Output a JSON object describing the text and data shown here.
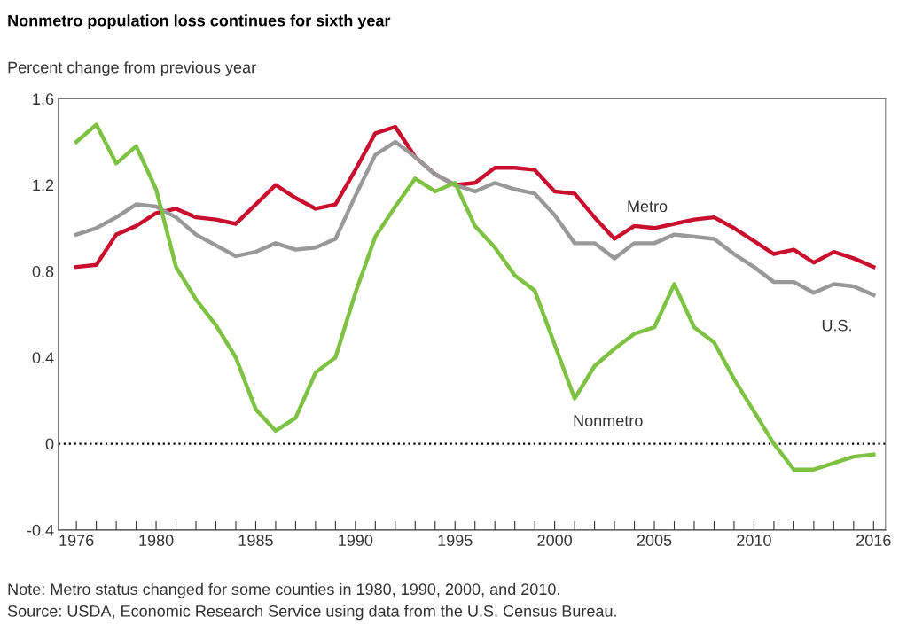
{
  "chart_data": {
    "type": "line",
    "title": "Nonmetro population loss continues for sixth year",
    "ylabel": "Percent change from previous year",
    "x": [
      1976,
      1977,
      1978,
      1979,
      1980,
      1981,
      1982,
      1983,
      1984,
      1985,
      1986,
      1987,
      1988,
      1989,
      1990,
      1991,
      1992,
      1993,
      1994,
      1995,
      1996,
      1997,
      1998,
      1999,
      2000,
      2001,
      2002,
      2003,
      2004,
      2005,
      2006,
      2007,
      2008,
      2009,
      2010,
      2011,
      2012,
      2013,
      2014,
      2015,
      2016
    ],
    "series": [
      {
        "name": "Metro",
        "color": "#c8102e",
        "values": [
          0.82,
          0.83,
          0.97,
          1.01,
          1.07,
          1.09,
          1.05,
          1.04,
          1.02,
          1.11,
          1.2,
          1.14,
          1.09,
          1.11,
          1.27,
          1.44,
          1.47,
          1.33,
          1.25,
          1.2,
          1.21,
          1.28,
          1.28,
          1.27,
          1.17,
          1.16,
          1.05,
          0.95,
          1.01,
          1.0,
          1.02,
          1.04,
          1.05,
          1.0,
          0.94,
          0.88,
          0.9,
          0.84,
          0.89,
          0.86,
          0.82
        ]
      },
      {
        "name": "U.S.",
        "color": "#999999",
        "values": [
          0.97,
          1.0,
          1.05,
          1.11,
          1.1,
          1.05,
          0.97,
          0.92,
          0.87,
          0.89,
          0.93,
          0.9,
          0.91,
          0.95,
          1.15,
          1.34,
          1.4,
          1.33,
          1.25,
          1.2,
          1.17,
          1.21,
          1.18,
          1.16,
          1.06,
          0.93,
          0.93,
          0.86,
          0.93,
          0.93,
          0.97,
          0.96,
          0.95,
          0.88,
          0.82,
          0.75,
          0.75,
          0.7,
          0.74,
          0.73,
          0.69
        ]
      },
      {
        "name": "Nonmetro",
        "color": "#7dc242",
        "values": [
          1.4,
          1.48,
          1.3,
          1.38,
          1.18,
          0.82,
          0.67,
          0.55,
          0.4,
          0.16,
          0.06,
          0.12,
          0.33,
          0.4,
          0.7,
          0.96,
          1.1,
          1.23,
          1.17,
          1.21,
          1.01,
          0.91,
          0.78,
          0.71,
          0.46,
          0.21,
          0.36,
          0.44,
          0.51,
          0.54,
          0.74,
          0.54,
          0.47,
          0.3,
          0.15,
          0.0,
          -0.12,
          -0.12,
          -0.09,
          -0.06,
          -0.05
        ]
      }
    ],
    "xlim": [
      1975.1,
      2016.6
    ],
    "ylim": [
      -0.4,
      1.6
    ],
    "xticks": [
      1976,
      {
        "value": 1977,
        "label": null
      },
      {
        "value": 1978,
        "label": null
      },
      {
        "value": 1979,
        "label": null
      },
      1980,
      {
        "value": 1981,
        "label": null
      },
      {
        "value": 1982,
        "label": null
      },
      {
        "value": 1983,
        "label": null
      },
      {
        "value": 1984,
        "label": null
      },
      1985,
      {
        "value": 1986,
        "label": null
      },
      {
        "value": 1987,
        "label": null
      },
      {
        "value": 1988,
        "label": null
      },
      {
        "value": 1989,
        "label": null
      },
      1990,
      {
        "value": 1991,
        "label": null
      },
      {
        "value": 1992,
        "label": null
      },
      {
        "value": 1993,
        "label": null
      },
      {
        "value": 1994,
        "label": null
      },
      1995,
      {
        "value": 1996,
        "label": null
      },
      {
        "value": 1997,
        "label": null
      },
      {
        "value": 1998,
        "label": null
      },
      {
        "value": 1999,
        "label": null
      },
      2000,
      {
        "value": 2001,
        "label": null
      },
      {
        "value": 2002,
        "label": null
      },
      {
        "value": 2003,
        "label": null
      },
      {
        "value": 2004,
        "label": null
      },
      2005,
      {
        "value": 2006,
        "label": null
      },
      {
        "value": 2007,
        "label": null
      },
      {
        "value": 2008,
        "label": null
      },
      {
        "value": 2009,
        "label": null
      },
      2010,
      {
        "value": 2011,
        "label": null
      },
      {
        "value": 2012,
        "label": null
      },
      {
        "value": 2013,
        "label": null
      },
      {
        "value": 2014,
        "label": null
      },
      {
        "value": 2015,
        "label": null
      },
      2016
    ],
    "yticks": [
      -0.4,
      0,
      0.4,
      0.8,
      1.2,
      1.6
    ],
    "ref_lines": [
      {
        "axis": "y",
        "value": 0,
        "color": "#000000",
        "line_style": "dotted"
      }
    ],
    "grid": false,
    "legend": false,
    "marker": "none",
    "line_style": "solid",
    "annotations": [
      "Note: Metro status changed for some counties in 1980, 1990, 2000, and 2010.",
      "Source: USDA, Economic Research Service using data from the U.S. Census Bureau."
    ]
  }
}
